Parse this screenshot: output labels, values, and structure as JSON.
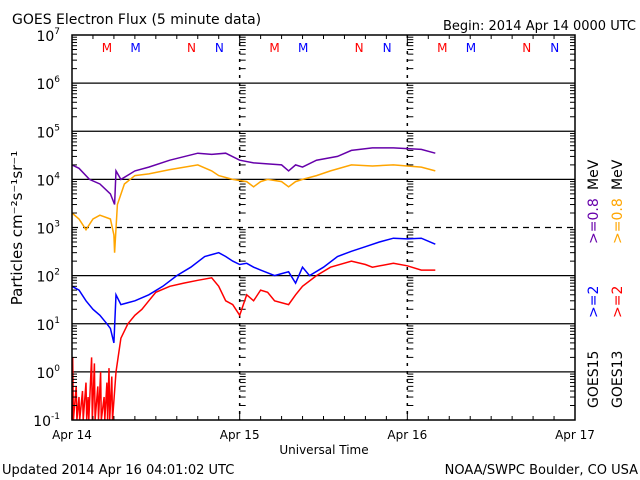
{
  "chart_data": {
    "type": "line",
    "title": "GOES Electron Flux (5 minute data)",
    "begin_label": "Begin: 2014 Apr 14 0000 UTC",
    "xlabel": "Universal Time",
    "ylabel": "Particles cm⁻²s⁻¹sr⁻¹",
    "x_unit": "hours since 2014 Apr 14 0000 UTC",
    "xlim": [
      0,
      72
    ],
    "ylim": [
      0.1,
      10000000
    ],
    "yscale": "log",
    "x_ticks": [
      {
        "h": 0,
        "label": "Apr 14"
      },
      {
        "h": 24,
        "label": "Apr 15"
      },
      {
        "h": 48,
        "label": "Apr 16"
      },
      {
        "h": 72,
        "label": "Apr 17"
      }
    ],
    "y_ticks": [
      {
        "exp": "7"
      },
      {
        "exp": "6"
      },
      {
        "exp": "5"
      },
      {
        "exp": "4"
      },
      {
        "exp": "3"
      },
      {
        "exp": "2"
      },
      {
        "exp": "1"
      },
      {
        "exp": "0"
      },
      {
        "exp": "-1"
      }
    ],
    "y_tick_base": "10",
    "markers": [
      {
        "h": 5,
        "label": "M",
        "color": "#ff0000"
      },
      {
        "h": 9.1,
        "label": "M",
        "color": "#0000ff"
      },
      {
        "h": 17.1,
        "label": "N",
        "color": "#ff0000"
      },
      {
        "h": 21.1,
        "label": "N",
        "color": "#0000ff"
      },
      {
        "h": 29,
        "label": "M",
        "color": "#ff0000"
      },
      {
        "h": 33.1,
        "label": "M",
        "color": "#0000ff"
      },
      {
        "h": 41.1,
        "label": "N",
        "color": "#ff0000"
      },
      {
        "h": 45.1,
        "label": "N",
        "color": "#0000ff"
      },
      {
        "h": 53,
        "label": "M",
        "color": "#ff0000"
      },
      {
        "h": 57.1,
        "label": "M",
        "color": "#0000ff"
      },
      {
        "h": 65.1,
        "label": "N",
        "color": "#ff0000"
      },
      {
        "h": 69.1,
        "label": "N",
        "color": "#0000ff"
      }
    ],
    "legend": {
      "placement": "right",
      "columns": [
        {
          "satellite": "GOES15",
          "entries": [
            {
              "label": ">=2",
              "color": "#0000ff"
            },
            {
              "label": ">=0.8",
              "color": "#6600aa"
            }
          ]
        },
        {
          "satellite": "GOES13",
          "entries": [
            {
              "label": ">=2",
              "color": "#ff0000"
            },
            {
              "label": ">=0.8",
              "color": "#ffa500"
            }
          ]
        }
      ],
      "unit": "MeV"
    },
    "series": [
      {
        "name": "GOES15 >=0.8 MeV",
        "color": "#6600aa",
        "points": [
          [
            0,
            20000
          ],
          [
            1,
            17000
          ],
          [
            2.5,
            10000
          ],
          [
            4,
            8000
          ],
          [
            5.5,
            5000
          ],
          [
            6.1,
            3000
          ],
          [
            6.3,
            15000
          ],
          [
            7,
            10000
          ],
          [
            9,
            15000
          ],
          [
            11,
            18000
          ],
          [
            14,
            25000
          ],
          [
            18,
            35000
          ],
          [
            20,
            33000
          ],
          [
            22,
            35000
          ],
          [
            24,
            25000
          ],
          [
            26,
            22000
          ],
          [
            28,
            21000
          ],
          [
            30,
            20000
          ],
          [
            31,
            15000
          ],
          [
            32,
            20000
          ],
          [
            33,
            18000
          ],
          [
            35,
            25000
          ],
          [
            38,
            30000
          ],
          [
            40,
            40000
          ],
          [
            43,
            45000
          ],
          [
            46,
            45000
          ],
          [
            50,
            42000
          ],
          [
            52,
            35000
          ]
        ]
      },
      {
        "name": "GOES13 >=0.8 MeV",
        "color": "#ffa500",
        "points": [
          [
            0,
            2000
          ],
          [
            1,
            1500
          ],
          [
            2,
            900
          ],
          [
            3,
            1500
          ],
          [
            4,
            1800
          ],
          [
            5.5,
            1500
          ],
          [
            6,
            700
          ],
          [
            6.1,
            300
          ],
          [
            6.5,
            3000
          ],
          [
            7.5,
            8000
          ],
          [
            9,
            12000
          ],
          [
            11,
            13000
          ],
          [
            14,
            16000
          ],
          [
            18,
            20000
          ],
          [
            20,
            15000
          ],
          [
            21,
            12000
          ],
          [
            23,
            10000
          ],
          [
            25,
            9000
          ],
          [
            26,
            7000
          ],
          [
            27,
            9000
          ],
          [
            28,
            10000
          ],
          [
            30,
            9000
          ],
          [
            31,
            7000
          ],
          [
            32,
            9000
          ],
          [
            33,
            10000
          ],
          [
            35,
            12000
          ],
          [
            37,
            15000
          ],
          [
            40,
            20000
          ],
          [
            43,
            19000
          ],
          [
            46,
            20000
          ],
          [
            50,
            18000
          ],
          [
            52,
            15000
          ]
        ]
      },
      {
        "name": "GOES15 >=2 MeV",
        "color": "#0000ff",
        "points": [
          [
            0,
            60
          ],
          [
            1,
            50
          ],
          [
            2,
            30
          ],
          [
            3,
            20
          ],
          [
            4,
            15
          ],
          [
            5,
            10
          ],
          [
            5.5,
            8
          ],
          [
            6,
            4
          ],
          [
            6.3,
            40
          ],
          [
            7,
            25
          ],
          [
            9,
            30
          ],
          [
            11,
            40
          ],
          [
            13,
            60
          ],
          [
            15,
            100
          ],
          [
            17,
            150
          ],
          [
            19,
            250
          ],
          [
            21,
            300
          ],
          [
            22,
            250
          ],
          [
            23,
            200
          ],
          [
            24,
            170
          ],
          [
            25,
            180
          ],
          [
            26,
            150
          ],
          [
            27,
            130
          ],
          [
            29,
            100
          ],
          [
            30,
            110
          ],
          [
            31,
            120
          ],
          [
            32,
            70
          ],
          [
            33,
            150
          ],
          [
            34,
            100
          ],
          [
            36,
            150
          ],
          [
            38,
            250
          ],
          [
            40,
            320
          ],
          [
            42,
            400
          ],
          [
            44,
            500
          ],
          [
            46,
            600
          ],
          [
            48,
            580
          ],
          [
            50,
            600
          ],
          [
            52,
            450
          ]
        ]
      },
      {
        "name": "GOES13 >=2 MeV",
        "color": "#ff0000",
        "points": [
          [
            0,
            0.1
          ],
          [
            0.1,
            2
          ],
          [
            0.2,
            0.1
          ],
          [
            0.6,
            0.5
          ],
          [
            0.7,
            0.1
          ],
          [
            1,
            0.3
          ],
          [
            1.1,
            0.1
          ],
          [
            1.5,
            0.4
          ],
          [
            1.6,
            0.1
          ],
          [
            2,
            0.6
          ],
          [
            2.1,
            0.1
          ],
          [
            2.3,
            0.3
          ],
          [
            2.4,
            0.1
          ],
          [
            2.8,
            2
          ],
          [
            2.9,
            0.1
          ],
          [
            3.2,
            1.5
          ],
          [
            3.3,
            0.1
          ],
          [
            3.7,
            0.5
          ],
          [
            3.8,
            0.1
          ],
          [
            4.1,
            1
          ],
          [
            4.2,
            0.1
          ],
          [
            4.6,
            0.3
          ],
          [
            4.7,
            0.1
          ],
          [
            5,
            0.6
          ],
          [
            5.1,
            0.1
          ],
          [
            5.3,
            1.2
          ],
          [
            5.4,
            0.1
          ],
          [
            5.7,
            0.8
          ],
          [
            5.8,
            0.1
          ],
          [
            6.3,
            1
          ],
          [
            7,
            5
          ],
          [
            8,
            10
          ],
          [
            9,
            15
          ],
          [
            10,
            20
          ],
          [
            11,
            30
          ],
          [
            12,
            45
          ],
          [
            14,
            60
          ],
          [
            16,
            70
          ],
          [
            18,
            80
          ],
          [
            20,
            90
          ],
          [
            21,
            60
          ],
          [
            22,
            30
          ],
          [
            23,
            25
          ],
          [
            24,
            15
          ],
          [
            25,
            40
          ],
          [
            26,
            30
          ],
          [
            27,
            50
          ],
          [
            28,
            45
          ],
          [
            29,
            30
          ],
          [
            31,
            25
          ],
          [
            32,
            40
          ],
          [
            33,
            60
          ],
          [
            35,
            100
          ],
          [
            37,
            150
          ],
          [
            40,
            200
          ],
          [
            42,
            170
          ],
          [
            43,
            150
          ],
          [
            46,
            180
          ],
          [
            48,
            160
          ],
          [
            50,
            130
          ],
          [
            52,
            130
          ]
        ]
      }
    ]
  },
  "footer": {
    "updated": "Updated 2014 Apr 16 04:01:02 UTC",
    "credit": "NOAA/SWPC Boulder, CO USA"
  }
}
